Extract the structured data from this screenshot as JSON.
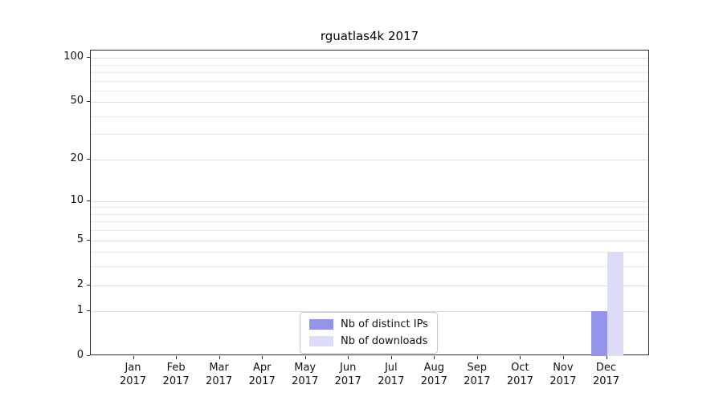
{
  "chart_data": {
    "type": "bar",
    "title": "rguatlas4k 2017",
    "x_months": [
      "Jan",
      "Feb",
      "Mar",
      "Apr",
      "May",
      "Jun",
      "Jul",
      "Aug",
      "Sep",
      "Oct",
      "Nov",
      "Dec"
    ],
    "x_year": "2017",
    "y_ticks": [
      0,
      1,
      2,
      5,
      10,
      20,
      50,
      100
    ],
    "y_scale": "log10(1+v)",
    "y_axis_max": 112,
    "ylim": [
      0,
      112
    ],
    "grid": "horizontal",
    "grid_values": [
      1,
      2,
      3,
      4,
      5,
      6,
      7,
      8,
      9,
      10,
      20,
      30,
      40,
      50,
      60,
      70,
      80,
      90,
      100
    ],
    "legend_position": "bottom-center",
    "series": [
      {
        "name": "Nb of distinct IPs",
        "color": "#9394ea",
        "values": [
          0,
          0,
          0,
          0,
          0,
          0,
          0,
          0,
          0,
          0,
          0,
          1
        ]
      },
      {
        "name": "Nb of downloads",
        "color": "#dcdcf9",
        "values": [
          0,
          0,
          0,
          0,
          0,
          0,
          0,
          0,
          0,
          0,
          0,
          4
        ]
      }
    ],
    "colors": {
      "grid_major": "#dcdcdc",
      "grid_minor": "#ececec",
      "axis": "#2b2b2b",
      "text": "#111111"
    }
  }
}
